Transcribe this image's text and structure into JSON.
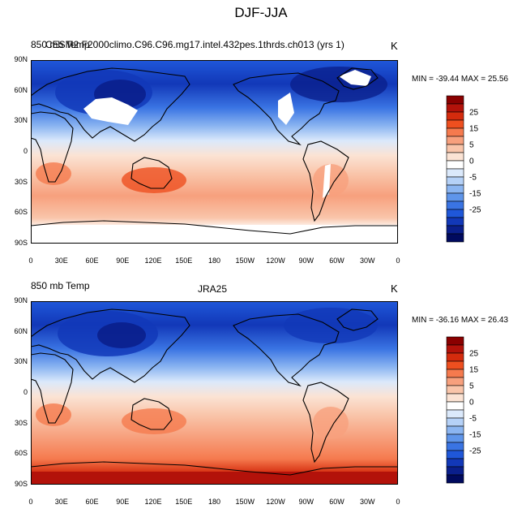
{
  "title": "DJF-JJA",
  "panels": [
    {
      "variable": "850 mb Temp",
      "center_label": "CESM2 F2000climo.C96.C96.mg17.intel.432pes.1thrds.ch013 (yrs 1)",
      "unit": "K",
      "stats": "MIN = -39.44 MAX =  25.56"
    },
    {
      "variable": "850 mb Temp",
      "center_label": "JRA25",
      "unit": "K",
      "stats": "MIN = -36.16 MAX =  26.43"
    }
  ],
  "lat_labels": [
    "90N",
    "60N",
    "30N",
    "0",
    "30S",
    "60S",
    "90S"
  ],
  "lon_labels": [
    "0",
    "30E",
    "60E",
    "90E",
    "120E",
    "150E",
    "180",
    "150W",
    "120W",
    "90W",
    "60W",
    "30W",
    "0"
  ],
  "colorbar": {
    "labels": [
      "25",
      "15",
      "5",
      "0",
      "-5",
      "-15",
      "-25"
    ],
    "colors_top_to_bottom": [
      "#8a0000",
      "#b3120a",
      "#d42b0d",
      "#ee4f1f",
      "#f57a4e",
      "#f7a07d",
      "#f9c5aa",
      "#fbe3d4",
      "#ffffff",
      "#dbe9fb",
      "#b5d1f7",
      "#8bb5f1",
      "#5f95ea",
      "#3a74e3",
      "#1f57d9",
      "#1238b8",
      "#0a1f8c",
      "#000a5e"
    ]
  },
  "colors": {
    "missing": "#ffffff",
    "coast": "#000000"
  }
}
